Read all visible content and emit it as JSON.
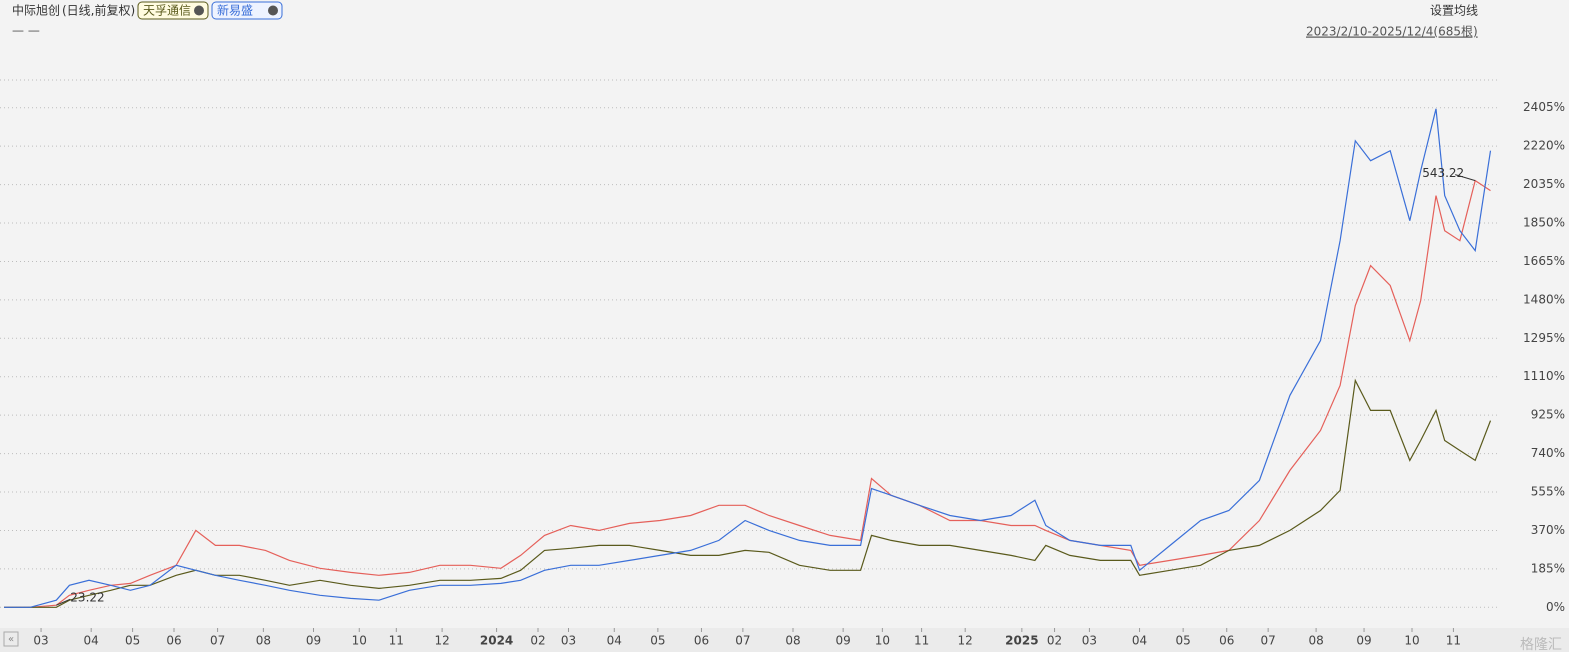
{
  "header": {
    "range": "2023/2/10-2025/12/4(685根)",
    "ma_setting": "设置均线",
    "dash": "— —",
    "watermark": "格隆汇"
  },
  "chart_data": {
    "type": "line",
    "subtitle": "(日线,前复权)",
    "x": [
      0,
      12,
      24,
      30,
      39,
      49,
      58,
      67,
      79,
      88,
      97,
      108,
      120,
      131,
      145,
      159,
      172,
      186,
      200,
      214,
      228,
      237,
      248,
      260,
      273,
      287,
      301,
      315,
      328,
      340,
      351,
      365,
      379,
      393,
      398,
      407,
      420,
      434,
      448,
      462,
      473,
      478,
      489,
      503,
      517,
      521,
      535,
      549,
      562,
      576,
      590,
      604,
      613,
      620,
      627,
      636,
      645,
      650,
      657,
      661,
      668,
      675,
      682
    ],
    "series": [
      {
        "name": "中际旭创",
        "color": "#e5605a",
        "values": [
          0,
          0,
          10,
          58,
          82,
          106,
          115,
          154,
          202,
          370,
          298,
          298,
          274,
          226,
          188,
          168,
          154,
          168,
          202,
          202,
          188,
          250,
          346,
          394,
          370,
          404,
          418,
          442,
          491,
          491,
          442,
          394,
          346,
          322,
          620,
          539,
          491,
          418,
          418,
          394,
          394,
          370,
          322,
          298,
          274,
          202,
          226,
          250,
          274,
          418,
          659,
          851,
          1068,
          1453,
          1645,
          1549,
          1284,
          1477,
          1982,
          1813,
          1765,
          2054,
          2006
        ]
      },
      {
        "name": "天孚通信",
        "color": "#5a5a1c",
        "values": [
          0,
          0,
          0,
          34,
          58,
          82,
          106,
          106,
          154,
          178,
          154,
          154,
          130,
          106,
          130,
          106,
          91,
          106,
          130,
          130,
          139,
          178,
          274,
          284,
          298,
          298,
          274,
          250,
          250,
          274,
          265,
          202,
          178,
          178,
          346,
          322,
          298,
          298,
          274,
          250,
          226,
          298,
          250,
          226,
          226,
          154,
          178,
          202,
          274,
          298,
          370,
          466,
          563,
          1092,
          948,
          948,
          707,
          803,
          948,
          803,
          755,
          707,
          899
        ]
      },
      {
        "name": "新易盛",
        "color": "#3a6fd8",
        "values": [
          0,
          0,
          34,
          106,
          130,
          106,
          82,
          106,
          202,
          178,
          154,
          130,
          106,
          82,
          58,
          43,
          34,
          82,
          106,
          106,
          115,
          130,
          178,
          202,
          202,
          226,
          250,
          274,
          322,
          418,
          370,
          322,
          298,
          298,
          572,
          539,
          491,
          442,
          418,
          442,
          515,
          394,
          322,
          298,
          298,
          178,
          298,
          418,
          466,
          611,
          1020,
          1284,
          1765,
          2246,
          2150,
          2198,
          1861,
          2102,
          2400,
          1982,
          1813,
          1717,
          2198
        ]
      }
    ],
    "xlim": [
      0,
      685
    ],
    "xticks": [
      {
        "value": 17,
        "label": "03"
      },
      {
        "value": 40,
        "label": "04"
      },
      {
        "value": 59,
        "label": "05"
      },
      {
        "value": 78,
        "label": "06"
      },
      {
        "value": 98,
        "label": "07"
      },
      {
        "value": 119,
        "label": "08"
      },
      {
        "value": 142,
        "label": "09"
      },
      {
        "value": 163,
        "label": "10"
      },
      {
        "value": 180,
        "label": "11"
      },
      {
        "value": 201,
        "label": "12"
      },
      {
        "value": 226,
        "label": "2024"
      },
      {
        "value": 245,
        "label": "02"
      },
      {
        "value": 259,
        "label": "03"
      },
      {
        "value": 280,
        "label": "04"
      },
      {
        "value": 300,
        "label": "05"
      },
      {
        "value": 320,
        "label": "06"
      },
      {
        "value": 339,
        "label": "07"
      },
      {
        "value": 362,
        "label": "08"
      },
      {
        "value": 385,
        "label": "09"
      },
      {
        "value": 403,
        "label": "10"
      },
      {
        "value": 421,
        "label": "11"
      },
      {
        "value": 441,
        "label": "12"
      },
      {
        "value": 467,
        "label": "2025"
      },
      {
        "value": 482,
        "label": "02"
      },
      {
        "value": 498,
        "label": "03"
      },
      {
        "value": 521,
        "label": "04"
      },
      {
        "value": 541,
        "label": "05"
      },
      {
        "value": 561,
        "label": "06"
      },
      {
        "value": 580,
        "label": "07"
      },
      {
        "value": 602,
        "label": "08"
      },
      {
        "value": 624,
        "label": "09"
      },
      {
        "value": 646,
        "label": "10"
      },
      {
        "value": 665,
        "label": "11"
      }
    ],
    "ylim": [
      -90,
      2500
    ],
    "yticks": [
      {
        "value": 0,
        "label": "0%"
      },
      {
        "value": 185,
        "label": "185%"
      },
      {
        "value": 370,
        "label": "370%"
      },
      {
        "value": 555,
        "label": "555%"
      },
      {
        "value": 740,
        "label": "740%"
      },
      {
        "value": 925,
        "label": "925%"
      },
      {
        "value": 1110,
        "label": "1110%"
      },
      {
        "value": 1295,
        "label": "1295%"
      },
      {
        "value": 1480,
        "label": "1480%"
      },
      {
        "value": 1665,
        "label": "1665%"
      },
      {
        "value": 1850,
        "label": "1850%"
      },
      {
        "value": 2035,
        "label": "2035%"
      },
      {
        "value": 2220,
        "label": "2220%"
      },
      {
        "value": 2405,
        "label": "2405%"
      }
    ],
    "grid": true,
    "annotations": [
      {
        "text": "23.22",
        "x": 24,
        "y": 10
      },
      {
        "text": "543.22",
        "x": 675,
        "y": 2054
      }
    ]
  }
}
